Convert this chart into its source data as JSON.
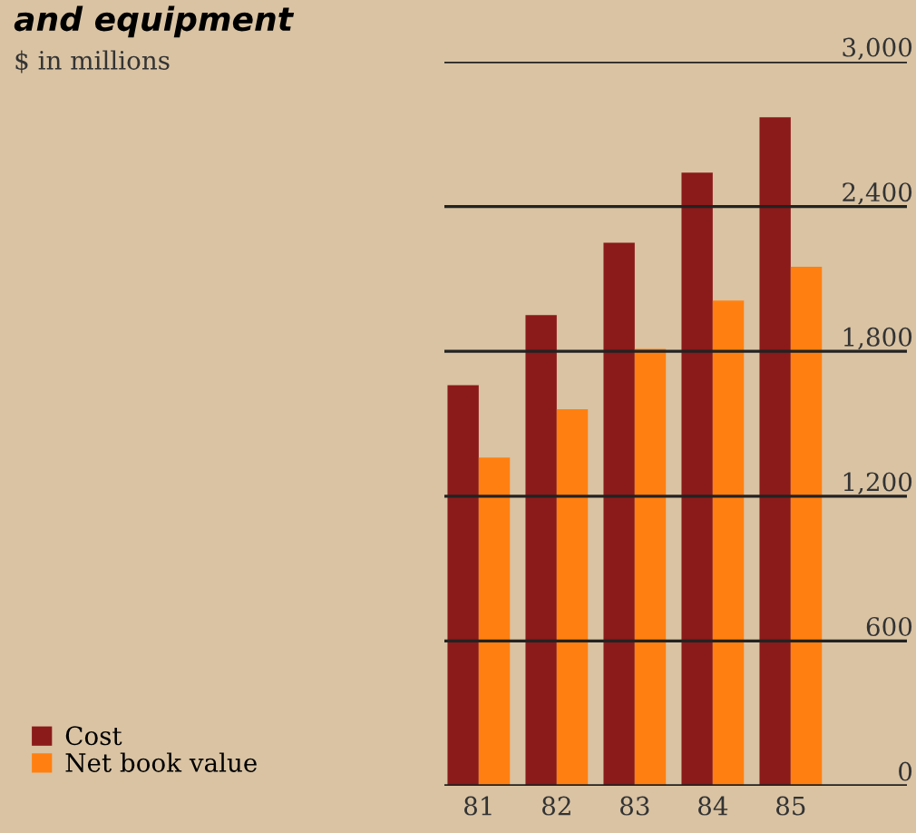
{
  "chart_data": {
    "type": "bar",
    "title": "and equipment",
    "subtitle": "$ in millions",
    "categories": [
      "81",
      "82",
      "83",
      "84",
      "85"
    ],
    "series": [
      {
        "name": "Cost",
        "color": "#8b1a1a",
        "values": [
          1660,
          1950,
          2250,
          2540,
          2770
        ]
      },
      {
        "name": "Net book value",
        "color": "#ff8010",
        "values": [
          1360,
          1560,
          1810,
          2010,
          2150
        ]
      }
    ],
    "ylim": [
      0,
      3000
    ],
    "yticks": [
      {
        "value": 0,
        "label": "0"
      },
      {
        "value": 600,
        "label": "600"
      },
      {
        "value": 1200,
        "label": "1,200"
      },
      {
        "value": 1800,
        "label": "1,800"
      },
      {
        "value": 2400,
        "label": "2,400"
      },
      {
        "value": 3000,
        "label": "3,000"
      }
    ],
    "grid": "y",
    "legend": "bottom left"
  }
}
